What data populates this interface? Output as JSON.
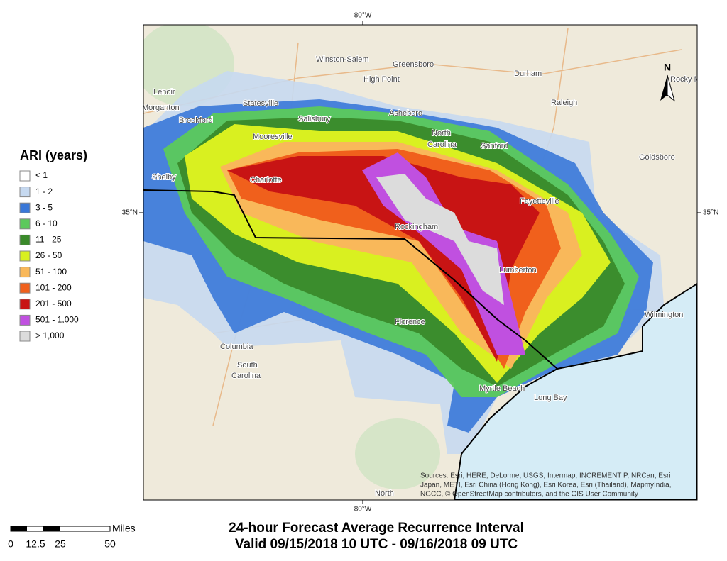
{
  "graticule": {
    "top": "80°W",
    "bottom": "80°W",
    "left": "35°N",
    "right": "35°N"
  },
  "legend": {
    "title": "ARI (years)",
    "items": [
      {
        "label": "< 1",
        "color": "#ffffff"
      },
      {
        "label": "1 - 2",
        "color": "#c6d9f0"
      },
      {
        "label": "3 - 5",
        "color": "#3a78d8"
      },
      {
        "label": "6 - 10",
        "color": "#5cc95c"
      },
      {
        "label": "11 - 25",
        "color": "#3a8a2a"
      },
      {
        "label": "26 - 50",
        "color": "#d9f020"
      },
      {
        "label": "51 - 100",
        "color": "#f9b85a"
      },
      {
        "label": "101 - 200",
        "color": "#f0601c"
      },
      {
        "label": "201 - 500",
        "color": "#c81414"
      },
      {
        "label": "501 - 1,000",
        "color": "#c050e0"
      },
      {
        "label": "> 1,000",
        "color": "#dcdcdc"
      }
    ]
  },
  "places": [
    "Winston-Salem",
    "Greensboro",
    "High Point",
    "Durham",
    "Raleigh",
    "Rocky M",
    "Lenoir",
    "Morganton",
    "Statesville",
    "Salisbury",
    "Asheboro",
    "Brookford",
    "Mooresville",
    "North",
    "Carolina",
    "Sanford",
    "Goldsboro",
    "Shelby",
    "Charlotte",
    "Fayetteville",
    "Rockingham",
    "Lumberton",
    "Wilmington",
    "Florence",
    "Columbia",
    "South",
    "Carolina",
    "Myrtle Beach",
    "Long Bay",
    "North"
  ],
  "north_arrow": "N",
  "attribution": [
    "Sources: Esri, HERE, DeLorme, USGS, Intermap, INCREMENT P, NRCan, Esri",
    "Japan, METI, Esri China (Hong Kong), Esri Korea, Esri (Thailand), MapmyIndia,",
    "NGCC, © OpenStreetMap contributors, and the GIS User Community"
  ],
  "title": [
    "24-hour Forecast Average Recurrence Interval",
    "Valid 09/15/2018 10 UTC - 09/16/2018 09 UTC"
  ],
  "scale_bar": {
    "unit": "Miles",
    "labels": [
      "0",
      "12.5",
      "25",
      "50"
    ]
  }
}
